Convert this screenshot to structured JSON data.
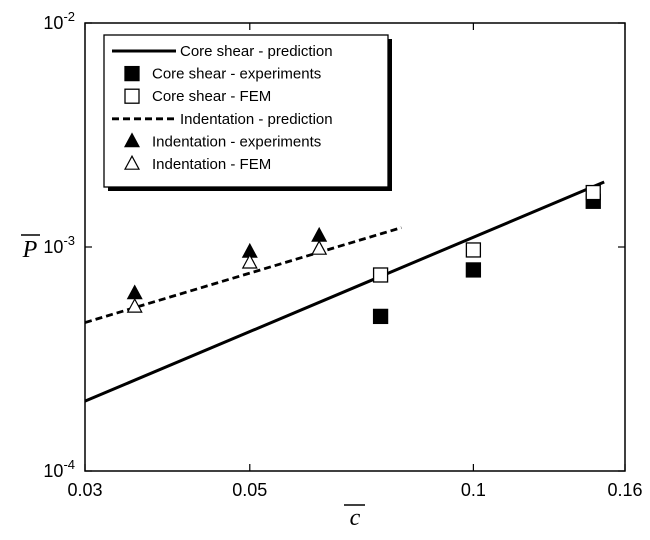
{
  "chart_data": {
    "type": "scatter",
    "xscale": "log",
    "yscale": "log",
    "xlim": [
      0.03,
      0.16
    ],
    "ylim": [
      0.0001,
      0.01
    ],
    "xlabel": "c",
    "ylabel": "P",
    "xticks": [
      {
        "value": 0.03,
        "label": "0.03"
      },
      {
        "value": 0.05,
        "label": "0.05"
      },
      {
        "value": 0.1,
        "label": "0.1"
      },
      {
        "value": 0.16,
        "label": "0.16"
      }
    ],
    "yticks": [
      {
        "value": 0.0001,
        "base": "10",
        "exp": "-4"
      },
      {
        "value": 0.001,
        "base": "10",
        "exp": "-3"
      },
      {
        "value": 0.01,
        "base": "10",
        "exp": "-2"
      }
    ],
    "legend_position": "top-left",
    "series": [
      {
        "name": "Core shear - prediction",
        "style": "solid-line",
        "color": "#000000",
        "x": [
          0.03,
          0.15
        ],
        "y": [
          0.000205,
          0.00195
        ]
      },
      {
        "name": "Core shear - experiments",
        "style": "filled-square",
        "color": "#000000",
        "x": [
          0.075,
          0.1,
          0.145
        ],
        "y": [
          0.00049,
          0.00079,
          0.0016
        ]
      },
      {
        "name": "Core shear - FEM",
        "style": "open-square",
        "color": "#000000",
        "x": [
          0.075,
          0.1,
          0.145
        ],
        "y": [
          0.00075,
          0.00097,
          0.00175
        ]
      },
      {
        "name": "Indentation - prediction",
        "style": "dashed-line",
        "color": "#000000",
        "x": [
          0.03,
          0.08
        ],
        "y": [
          0.00046,
          0.00122
        ]
      },
      {
        "name": "Indentation - experiments",
        "style": "filled-triangle",
        "color": "#000000",
        "x": [
          0.035,
          0.05,
          0.062
        ],
        "y": [
          0.00062,
          0.00095,
          0.00112
        ]
      },
      {
        "name": "Indentation - FEM",
        "style": "open-triangle",
        "color": "#000000",
        "x": [
          0.035,
          0.05,
          0.062
        ],
        "y": [
          0.00054,
          0.00085,
          0.00098
        ]
      }
    ]
  }
}
